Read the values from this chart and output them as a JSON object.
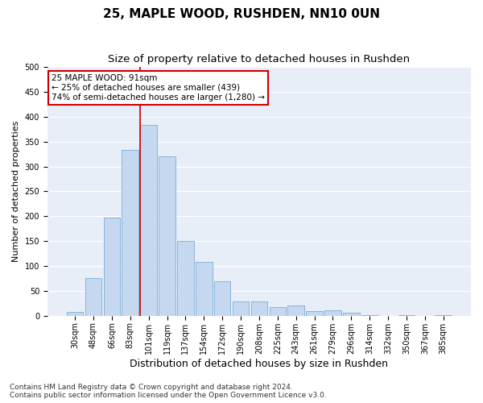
{
  "title": "25, MAPLE WOOD, RUSHDEN, NN10 0UN",
  "subtitle": "Size of property relative to detached houses in Rushden",
  "xlabel": "Distribution of detached houses by size in Rushden",
  "ylabel": "Number of detached properties",
  "categories": [
    "30sqm",
    "48sqm",
    "66sqm",
    "83sqm",
    "101sqm",
    "119sqm",
    "137sqm",
    "154sqm",
    "172sqm",
    "190sqm",
    "208sqm",
    "225sqm",
    "243sqm",
    "261sqm",
    "279sqm",
    "296sqm",
    "314sqm",
    "332sqm",
    "350sqm",
    "367sqm",
    "385sqm"
  ],
  "values": [
    8,
    76,
    197,
    333,
    384,
    320,
    151,
    108,
    70,
    29,
    29,
    17,
    20,
    10,
    11,
    6,
    2,
    0,
    1,
    0,
    2
  ],
  "bar_color": "#c5d8f0",
  "bar_edge_color": "#7aadd4",
  "fig_background": "#ffffff",
  "ax_background": "#e8eef8",
  "grid_color": "#ffffff",
  "annotation_box_color": "#ffffff",
  "annotation_box_edge_color": "#cc0000",
  "annotation_line1": "25 MAPLE WOOD: 91sqm",
  "annotation_line2": "← 25% of detached houses are smaller (439)",
  "annotation_line3": "74% of semi-detached houses are larger (1,280) →",
  "redline_x": 3.55,
  "ylim": [
    0,
    500
  ],
  "yticks": [
    0,
    50,
    100,
    150,
    200,
    250,
    300,
    350,
    400,
    450,
    500
  ],
  "footer_line1": "Contains HM Land Registry data © Crown copyright and database right 2024.",
  "footer_line2": "Contains public sector information licensed under the Open Government Licence v3.0.",
  "title_fontsize": 11,
  "subtitle_fontsize": 9.5,
  "xlabel_fontsize": 9,
  "ylabel_fontsize": 8,
  "tick_fontsize": 7,
  "annotation_fontsize": 7.5,
  "footer_fontsize": 6.5
}
